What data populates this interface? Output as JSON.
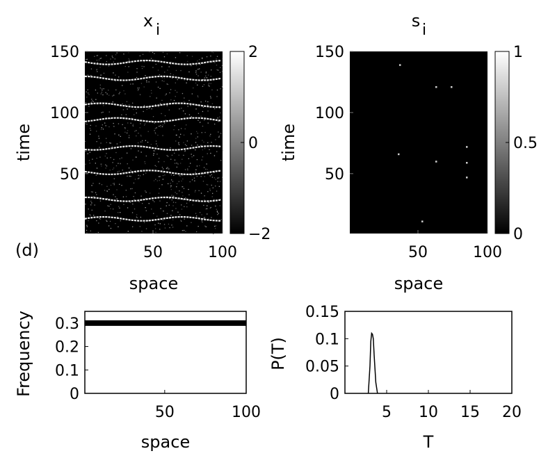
{
  "panel_label": "(d)",
  "chart_data": [
    {
      "type": "heatmap",
      "title": "x",
      "title_subscript": "i",
      "xlabel": "space",
      "ylabel": "time",
      "xlim": [
        1,
        100
      ],
      "ylim": [
        1,
        150
      ],
      "xticks": [
        50,
        100
      ],
      "yticks": [
        50,
        100,
        150
      ],
      "colorbar": {
        "min": -2,
        "max": 2,
        "ticks": [
          -2,
          0,
          2
        ],
        "tick_labels": [
          "−2",
          "0",
          "2"
        ]
      },
      "colormap": "gray",
      "band_times": [
        13,
        29,
        51,
        71,
        94,
        106,
        128,
        141
      ]
    },
    {
      "type": "heatmap",
      "title": "s",
      "title_subscript": "i",
      "xlabel": "space",
      "ylabel": "time",
      "xlim": [
        1,
        100
      ],
      "ylim": [
        1,
        150
      ],
      "xticks": [
        50,
        100
      ],
      "yticks": [
        50,
        100,
        150
      ],
      "colorbar": {
        "min": 0,
        "max": 1,
        "ticks": [
          0,
          0.5,
          1
        ],
        "tick_labels": [
          "0",
          "0.5",
          "1"
        ]
      },
      "colormap": "gray",
      "points": [
        {
          "x": 37,
          "y": 139
        },
        {
          "x": 63,
          "y": 121
        },
        {
          "x": 74,
          "y": 121
        },
        {
          "x": 85,
          "y": 72
        },
        {
          "x": 36,
          "y": 66
        },
        {
          "x": 63,
          "y": 60
        },
        {
          "x": 85,
          "y": 59
        },
        {
          "x": 85,
          "y": 47
        },
        {
          "x": 53,
          "y": 11
        }
      ]
    },
    {
      "type": "line",
      "title": "",
      "xlabel": "space",
      "ylabel": "Frequency",
      "xlim": [
        1,
        100
      ],
      "ylim": [
        0,
        0.35
      ],
      "xticks": [
        50,
        100
      ],
      "yticks": [
        0,
        0.1,
        0.2,
        0.3
      ],
      "x": [
        1,
        100
      ],
      "y": [
        0.3,
        0.3
      ]
    },
    {
      "type": "line",
      "title": "",
      "xlabel": "T",
      "ylabel": "P(T)",
      "xlim": [
        0,
        20
      ],
      "ylim": [
        0,
        0.15
      ],
      "xticks": [
        5,
        10,
        15,
        20
      ],
      "yticks": [
        0,
        0.05,
        0.1,
        0.15
      ],
      "x": [
        2.8,
        3.0,
        3.1,
        3.2,
        3.3,
        3.4,
        3.5,
        3.7,
        3.9
      ],
      "y": [
        0,
        0.05,
        0.095,
        0.11,
        0.108,
        0.1,
        0.07,
        0.02,
        0
      ]
    }
  ]
}
